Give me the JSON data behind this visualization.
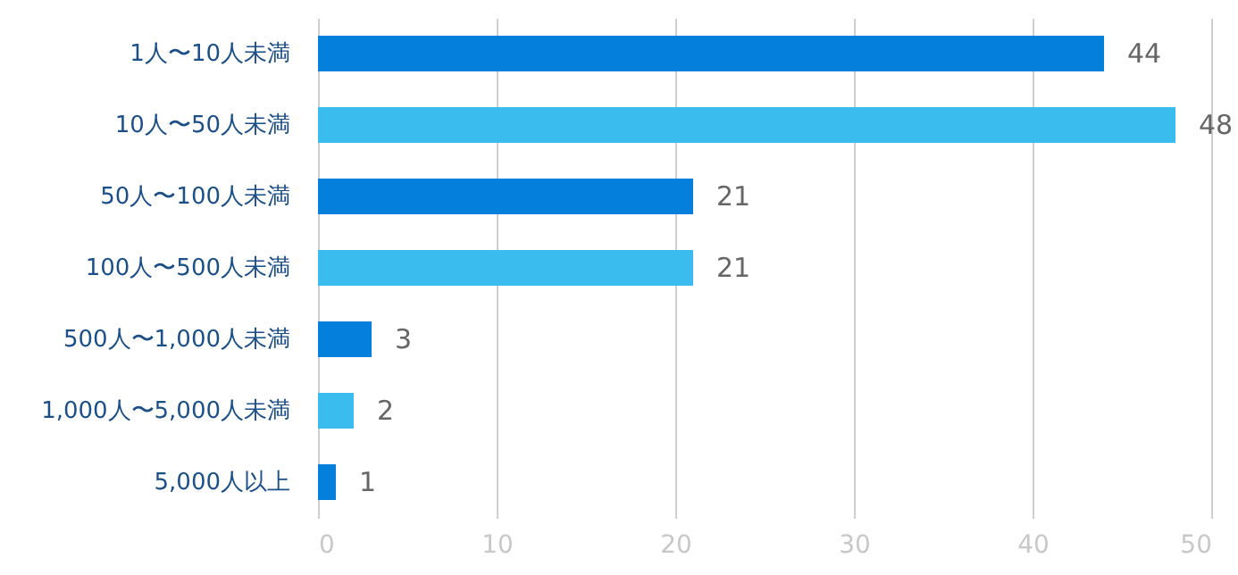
{
  "chart_data": {
    "type": "bar",
    "orientation": "horizontal",
    "categories": [
      "1人〜10人未満",
      "10人〜50人未満",
      "50人〜100人未満",
      "100人〜500人未満",
      "500人〜1,000人未満",
      "1,000人〜5,000人未満",
      "5,000人以上"
    ],
    "values": [
      44,
      48,
      21,
      21,
      3,
      2,
      1
    ],
    "colors": [
      "#0480dc",
      "#3bbcee",
      "#0480dc",
      "#3bbcee",
      "#0480dc",
      "#3bbcee",
      "#0480dc"
    ],
    "xlim": [
      0,
      50
    ],
    "xticks": [
      0,
      10,
      20,
      30,
      40,
      50
    ],
    "grid": "x",
    "data_labels": true
  }
}
